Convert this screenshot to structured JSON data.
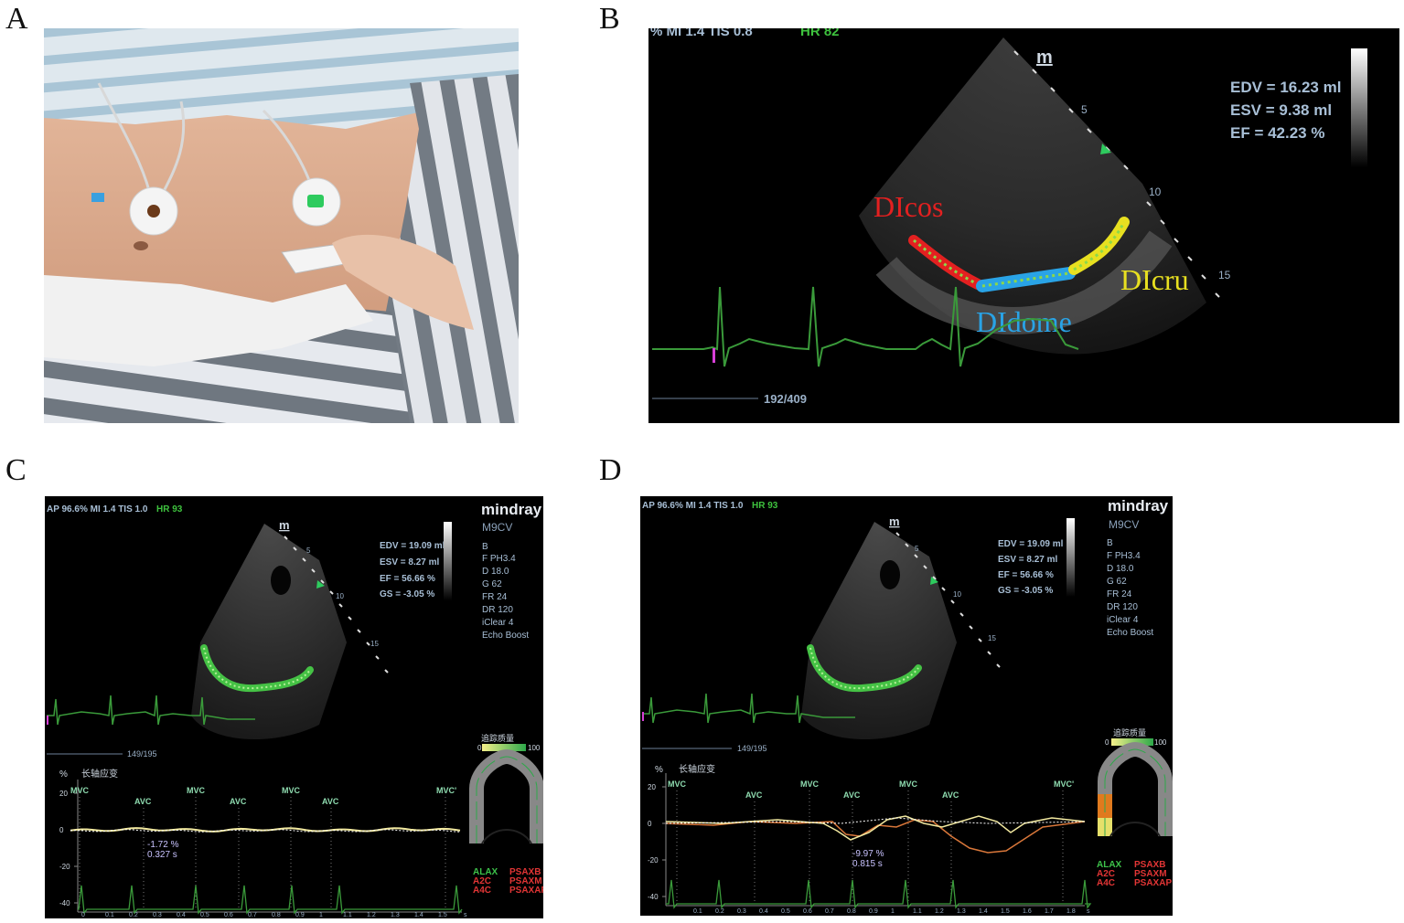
{
  "figure": {
    "labels": {
      "a": "A",
      "b": "B",
      "c": "C",
      "d": "D"
    }
  },
  "panel_b": {
    "header": "% MI 1.4 TIS 0.8",
    "hr": "HR 82",
    "probe_marker": "m",
    "measures": [
      "EDV = 16.23 ml",
      "ESV = 9.38 ml",
      "EF  = 42.23 %"
    ],
    "depth_ticks": [
      "5",
      "10",
      "15"
    ],
    "frame": "192/409",
    "segments": [
      {
        "name": "DIcos",
        "color": "#e32020"
      },
      {
        "name": "DIdome",
        "color": "#29a3e6"
      },
      {
        "name": "DIcru",
        "color": "#e8e020"
      }
    ]
  },
  "panel_c": {
    "header": "AP 96.6% MI 1.4 TIS 1.0",
    "hr": "HR 93",
    "brand": "mindray",
    "model": "M9CV",
    "probe_marker": "m",
    "measures": [
      "EDV = 19.09 ml",
      "ESV = 8.27 ml",
      "EF = 56.66 %",
      "GS = -3.05 %"
    ],
    "params": [
      "B",
      "F PH3.4",
      "D 18.0",
      "G 62",
      "FR 24",
      "DR 120",
      "iClear 4",
      "Echo Boost"
    ],
    "depth_ticks": [
      "5",
      "10",
      "15"
    ],
    "frame": "149/195",
    "strain_title": "长轴应变",
    "percent": "%",
    "y_ticks": [
      "20",
      "0",
      "-20",
      "-40"
    ],
    "events": [
      "MVC",
      "AVC",
      "MVC",
      "AVC",
      "MVC",
      "AVC",
      "MVC'"
    ],
    "readout_value": "-1.72 %",
    "readout_time": "0.327 s",
    "scale_title": "追踪质量",
    "scale_min": "0",
    "scale_max": "100",
    "views_left": [
      "ALAX",
      "A2C",
      "A4C"
    ],
    "views_right": [
      "PSAXB",
      "PSAXM",
      "PSAXAP"
    ],
    "time_ticks": [
      "0",
      "0.1",
      "0.2",
      "0.3",
      "0.4",
      "0.5",
      "0.6",
      "0.7",
      "0.8",
      "0.9",
      "1",
      "1.1",
      "1.2",
      "1.3",
      "1.4",
      "1.5"
    ],
    "time_end": "s"
  },
  "panel_d": {
    "header": "AP 96.6% MI 1.4 TIS 1.0",
    "hr": "HR 93",
    "brand": "mindray",
    "model": "M9CV",
    "probe_marker": "m",
    "measures": [
      "EDV = 19.09 ml",
      "ESV = 8.27 ml",
      "EF = 56.66 %",
      "GS = -3.05 %"
    ],
    "params": [
      "B",
      "F PH3.4",
      "D 18.0",
      "G 62",
      "FR 24",
      "DR 120",
      "iClear 4",
      "Echo Boost"
    ],
    "depth_ticks": [
      "5",
      "10",
      "15"
    ],
    "frame": "149/195",
    "strain_title": "长轴应变",
    "percent": "%",
    "y_ticks": [
      "20",
      "0",
      "-20",
      "-40"
    ],
    "events": [
      "MVC",
      "AVC",
      "MVC",
      "AVC",
      "MVC",
      "AVC",
      "MVC'"
    ],
    "readout_value": "-9.97 %",
    "readout_time": "0.815 s",
    "scale_title": "追踪质量",
    "scale_min": "0",
    "scale_max": "100",
    "views_left": [
      "ALAX",
      "A2C",
      "A4C"
    ],
    "views_right": [
      "PSAXB",
      "PSAXM",
      "PSAXAP"
    ],
    "time_ticks": [
      "0.1",
      "0.2",
      "0.3",
      "0.4",
      "0.5",
      "0.6",
      "0.7",
      "0.8",
      "0.9",
      "1",
      "1.1",
      "1.2",
      "1.3",
      "1.4",
      "1.5",
      "1.6",
      "1.7",
      "1.8"
    ],
    "time_end": "s"
  },
  "colors": {
    "echo_bg": "#000000",
    "ecg_green": "#3a9a3a",
    "text_blue_grey": "#a8bfd6",
    "hr_green": "#3ec23e",
    "strain_yellow": "#f2e9a0",
    "strain_orange": "#d9773a",
    "event_green": "#8fdcb0",
    "view_green": "#3dc24a",
    "view_red": "#e23535"
  }
}
